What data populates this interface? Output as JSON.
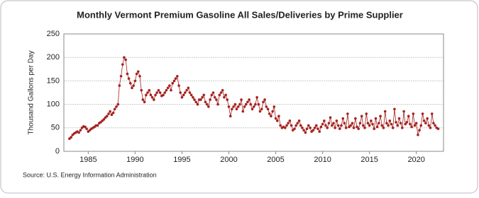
{
  "chart_data": {
    "type": "line",
    "title": "Monthly Vermont Premium Gasoline All Sales/Deliveries by Prime Supplier",
    "y_label": "Thousand Gallons per Day",
    "source": "Source: U.S. Energy Information Administration",
    "color": "#a5221f",
    "grid": true,
    "xlim": [
      1982.4,
      2022.9
    ],
    "xticks": [
      1985,
      1990,
      1995,
      2000,
      2005,
      2010,
      2015,
      2020
    ],
    "ylim": [
      0,
      250
    ],
    "yticks": [
      0,
      50,
      100,
      150,
      200,
      250
    ],
    "x": [
      1983,
      1983.17,
      1983.33,
      1983.5,
      1983.67,
      1983.83,
      1984,
      1984.17,
      1984.33,
      1984.5,
      1984.67,
      1984.83,
      1985,
      1985.17,
      1985.33,
      1985.5,
      1985.67,
      1985.83,
      1986,
      1986.17,
      1986.33,
      1986.5,
      1986.67,
      1986.83,
      1987,
      1987.17,
      1987.33,
      1987.5,
      1987.67,
      1987.83,
      1988,
      1988.17,
      1988.33,
      1988.5,
      1988.67,
      1988.83,
      1989,
      1989.17,
      1989.33,
      1989.5,
      1989.67,
      1989.83,
      1990,
      1990.17,
      1990.33,
      1990.5,
      1990.67,
      1990.83,
      1991,
      1991.17,
      1991.33,
      1991.5,
      1991.67,
      1991.83,
      1992,
      1992.17,
      1992.33,
      1992.5,
      1992.67,
      1992.83,
      1993,
      1993.17,
      1993.33,
      1993.5,
      1993.67,
      1993.83,
      1994,
      1994.17,
      1994.33,
      1994.5,
      1994.67,
      1994.83,
      1995,
      1995.17,
      1995.33,
      1995.5,
      1995.67,
      1995.83,
      1996,
      1996.17,
      1996.33,
      1996.5,
      1996.67,
      1996.83,
      1997,
      1997.17,
      1997.33,
      1997.5,
      1997.67,
      1997.83,
      1998,
      1998.17,
      1998.33,
      1998.5,
      1998.67,
      1998.83,
      1999,
      1999.17,
      1999.33,
      1999.5,
      1999.67,
      1999.83,
      2000,
      2000.17,
      2000.33,
      2000.5,
      2000.67,
      2000.83,
      2001,
      2001.17,
      2001.33,
      2001.5,
      2001.67,
      2001.83,
      2002,
      2002.17,
      2002.33,
      2002.5,
      2002.67,
      2002.83,
      2003,
      2003.17,
      2003.33,
      2003.5,
      2003.67,
      2003.83,
      2004,
      2004.17,
      2004.33,
      2004.5,
      2004.67,
      2004.83,
      2005,
      2005.17,
      2005.33,
      2005.5,
      2005.67,
      2005.83,
      2006,
      2006.17,
      2006.33,
      2006.5,
      2006.67,
      2006.83,
      2007,
      2007.17,
      2007.33,
      2007.5,
      2007.67,
      2007.83,
      2008,
      2008.17,
      2008.33,
      2008.5,
      2008.67,
      2008.83,
      2009,
      2009.17,
      2009.33,
      2009.5,
      2009.67,
      2009.83,
      2010,
      2010.17,
      2010.33,
      2010.5,
      2010.67,
      2010.83,
      2011,
      2011.17,
      2011.33,
      2011.5,
      2011.67,
      2011.83,
      2012,
      2012.17,
      2012.33,
      2012.5,
      2012.67,
      2012.83,
      2013,
      2013.17,
      2013.33,
      2013.5,
      2013.67,
      2013.83,
      2014,
      2014.17,
      2014.33,
      2014.5,
      2014.67,
      2014.83,
      2015,
      2015.17,
      2015.33,
      2015.5,
      2015.67,
      2015.83,
      2016,
      2016.17,
      2016.33,
      2016.5,
      2016.67,
      2016.83,
      2017,
      2017.17,
      2017.33,
      2017.5,
      2017.67,
      2017.83,
      2018,
      2018.17,
      2018.33,
      2018.5,
      2018.67,
      2018.83,
      2019,
      2019.17,
      2019.33,
      2019.5,
      2019.67,
      2019.83,
      2020,
      2020.17,
      2020.33,
      2020.5,
      2020.67,
      2020.83,
      2021,
      2021.17,
      2021.33,
      2021.5,
      2021.67,
      2021.83,
      2022,
      2022.17,
      2022.33
    ],
    "values": [
      27,
      30,
      35,
      38,
      40,
      42,
      40,
      45,
      50,
      53,
      52,
      48,
      42,
      45,
      48,
      50,
      52,
      55,
      55,
      60,
      62,
      65,
      68,
      72,
      75,
      80,
      85,
      78,
      82,
      90,
      95,
      100,
      140,
      160,
      185,
      200,
      195,
      165,
      155,
      145,
      135,
      140,
      150,
      165,
      170,
      160,
      130,
      110,
      105,
      120,
      125,
      130,
      120,
      115,
      110,
      120,
      125,
      130,
      125,
      118,
      120,
      125,
      130,
      135,
      140,
      130,
      145,
      150,
      155,
      160,
      140,
      125,
      115,
      120,
      125,
      130,
      135,
      125,
      120,
      115,
      110,
      105,
      100,
      110,
      110,
      115,
      120,
      105,
      100,
      95,
      110,
      120,
      125,
      115,
      110,
      100,
      120,
      125,
      130,
      115,
      120,
      110,
      95,
      75,
      90,
      95,
      100,
      90,
      95,
      100,
      110,
      85,
      95,
      100,
      105,
      110,
      100,
      90,
      95,
      100,
      115,
      100,
      85,
      90,
      105,
      110,
      95,
      90,
      80,
      75,
      85,
      95,
      70,
      65,
      75,
      55,
      50,
      52,
      50,
      55,
      60,
      65,
      55,
      45,
      48,
      55,
      60,
      65,
      55,
      50,
      45,
      40,
      48,
      55,
      50,
      42,
      45,
      50,
      55,
      48,
      42,
      52,
      58,
      65,
      55,
      50,
      60,
      72,
      55,
      60,
      50,
      65,
      55,
      48,
      55,
      70,
      60,
      50,
      80,
      52,
      55,
      60,
      50,
      70,
      52,
      48,
      60,
      75,
      55,
      50,
      80,
      60,
      55,
      65,
      58,
      48,
      70,
      52,
      60,
      75,
      55,
      50,
      85,
      60,
      55,
      65,
      58,
      50,
      90,
      62,
      55,
      70,
      60,
      50,
      85,
      58,
      62,
      75,
      58,
      52,
      80,
      55,
      60,
      35,
      45,
      55,
      80,
      65,
      60,
      70,
      55,
      50,
      80,
      60,
      55,
      50,
      48
    ]
  }
}
